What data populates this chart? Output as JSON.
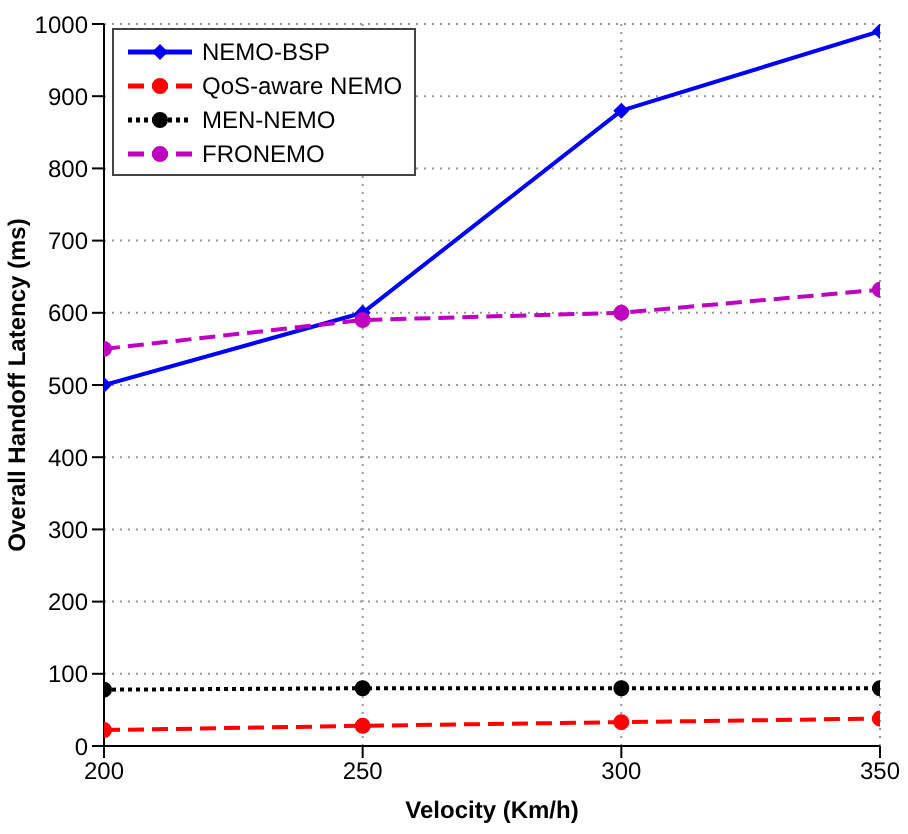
{
  "chart_data": {
    "type": "line",
    "xlabel": "Velocity (Km/h)",
    "ylabel": "Overall Handoff Latency (ms)",
    "x": [
      200,
      250,
      300,
      350
    ],
    "series": [
      {
        "name": "NEMO-BSP",
        "color": "#0000ff",
        "values": [
          500,
          600,
          880,
          990
        ],
        "line_style": "solid",
        "marker": "diamond"
      },
      {
        "name": "QoS-aware NEMO",
        "color": "#ff0000",
        "values": [
          22,
          28,
          33,
          38
        ],
        "line_style": "dashed",
        "marker": "circle"
      },
      {
        "name": "MEN-NEMO",
        "color": "#000000",
        "values": [
          78,
          80,
          80,
          80
        ],
        "line_style": "dotted",
        "marker": "circle"
      },
      {
        "name": "FRONEMO",
        "color": "#c000c0",
        "values": [
          550,
          590,
          600,
          632
        ],
        "line_style": "dashed",
        "marker": "circle"
      }
    ],
    "xlim": [
      200,
      350
    ],
    "xticks": [
      200,
      250,
      300,
      350
    ],
    "ylim": [
      0,
      1000
    ],
    "yticks": [
      0,
      100,
      200,
      300,
      400,
      500,
      600,
      700,
      800,
      900,
      1000
    ],
    "grid": true,
    "legend": "top left"
  }
}
